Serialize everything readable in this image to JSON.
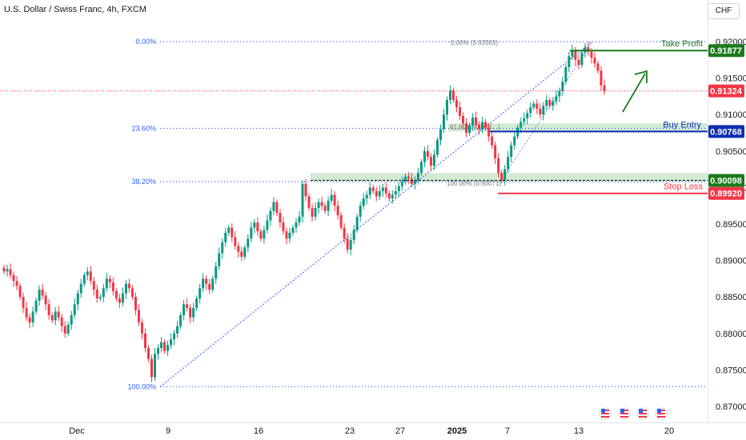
{
  "header": {
    "title": "U.S. Dollar / Swiss Franc, 4h, FXCM",
    "currency": "CHF"
  },
  "colors": {
    "up": "#089981",
    "down": "#f23645",
    "fib": "#2962ff",
    "tp": "#1b7a1b",
    "entry": "#0d2eb0",
    "sl": "#f23645",
    "zone": "#c8e6c9"
  },
  "chart_data": {
    "type": "candlestick",
    "symbol": "U.S. Dollar / Swiss Franc",
    "timeframe": "4h",
    "source": "FXCM",
    "currency": "CHF",
    "ylim": [
      0.87,
      0.9205
    ],
    "y_ticks": [
      "0.92000",
      "0.91500",
      "0.91000",
      "0.90500",
      "0.90000",
      "0.89500",
      "0.89000",
      "0.88500",
      "0.88000",
      "0.87500",
      "0.87000"
    ],
    "x_ticks": [
      "Dec",
      "9",
      "16",
      "23",
      "27",
      "2025",
      "7",
      "13",
      "20"
    ],
    "price_labels": [
      {
        "value": "0.91877",
        "label": "Take Profit",
        "role": "tp"
      },
      {
        "value": "0.91324",
        "label": "",
        "role": "current"
      },
      {
        "value": "0.90768",
        "label": "Buy Entry",
        "role": "entry"
      },
      {
        "value": "0.90098",
        "label": "",
        "role": "zone"
      },
      {
        "value": "0.89920",
        "label": "Stop Loss",
        "role": "sl"
      }
    ],
    "fib_left": [
      {
        "pct": "0.00%",
        "value": 0.92
      },
      {
        "pct": "23.60%",
        "value": 0.9081
      },
      {
        "pct": "38.20%",
        "value": 0.9008
      },
      {
        "pct": "100.00%",
        "value": 0.8727
      }
    ],
    "fib_inner": [
      "0.00% (0.92003)",
      "61.80% (0.908…)",
      "100.00% (0.90071)"
    ],
    "close_series": [
      0.8885,
      0.8888,
      0.888,
      0.8872,
      0.8865,
      0.885,
      0.8835,
      0.8822,
      0.8815,
      0.883,
      0.8845,
      0.886,
      0.8852,
      0.884,
      0.8825,
      0.8818,
      0.883,
      0.8822,
      0.881,
      0.88,
      0.8812,
      0.8825,
      0.884,
      0.8855,
      0.8868,
      0.888,
      0.8885,
      0.8872,
      0.886,
      0.8848,
      0.885,
      0.8862,
      0.8875,
      0.887,
      0.8858,
      0.8848,
      0.8842,
      0.8855,
      0.8868,
      0.8862,
      0.885,
      0.8832,
      0.8815,
      0.88,
      0.878,
      0.8765,
      0.874,
      0.8772,
      0.878,
      0.8788,
      0.8776,
      0.8784,
      0.8792,
      0.88,
      0.881,
      0.8825,
      0.884,
      0.8835,
      0.8822,
      0.8835,
      0.8848,
      0.8862,
      0.8875,
      0.8868,
      0.886,
      0.8875,
      0.8892,
      0.891,
      0.8925,
      0.8938,
      0.8945,
      0.8932,
      0.892,
      0.8912,
      0.8905,
      0.8918,
      0.893,
      0.8945,
      0.8952,
      0.894,
      0.893,
      0.8942,
      0.8955,
      0.8968,
      0.898,
      0.8965,
      0.8952,
      0.894,
      0.893,
      0.8938,
      0.8945,
      0.8952,
      0.896,
      0.9005,
      0.8988,
      0.8972,
      0.896,
      0.8972,
      0.898,
      0.8975,
      0.8968,
      0.8982,
      0.899,
      0.8975,
      0.8962,
      0.8945,
      0.893,
      0.8915,
      0.8928,
      0.8942,
      0.896,
      0.8975,
      0.8985,
      0.899,
      0.9,
      0.8995,
      0.8988,
      0.8995,
      0.9,
      0.8992,
      0.8985,
      0.899,
      0.8995,
      0.9002,
      0.9008,
      0.9015,
      0.9012,
      0.9005,
      0.901,
      0.902,
      0.9035,
      0.905,
      0.9042,
      0.903,
      0.9045,
      0.9065,
      0.908,
      0.91,
      0.912,
      0.9133,
      0.912,
      0.911,
      0.9098,
      0.9088,
      0.9075,
      0.9085,
      0.9096,
      0.9086,
      0.908,
      0.909,
      0.9082,
      0.907,
      0.9058,
      0.904,
      0.902,
      0.901,
      0.9025,
      0.9042,
      0.9058,
      0.907,
      0.9082,
      0.909,
      0.9095,
      0.9102,
      0.911,
      0.9115,
      0.9108,
      0.91,
      0.9112,
      0.912,
      0.9112,
      0.9118,
      0.9125,
      0.9132,
      0.9145,
      0.9165,
      0.918,
      0.9188,
      0.9175,
      0.9168,
      0.9185,
      0.9192,
      0.9186,
      0.9178,
      0.917,
      0.916,
      0.914,
      0.9132
    ]
  }
}
